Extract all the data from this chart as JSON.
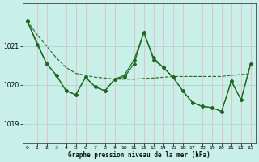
{
  "title": "Graphe pression niveau de la mer (hPa)",
  "bg_color": "#c8f0e8",
  "line_color": "#1a6b1a",
  "grid_color_v": "#f0b0b0",
  "grid_color_h": "#a8d8d0",
  "ylim": [
    1018.5,
    1022.1
  ],
  "yticks": [
    1019,
    1020,
    1021
  ],
  "xlim": [
    -0.5,
    23.5
  ],
  "xticks": [
    0,
    1,
    2,
    3,
    4,
    5,
    6,
    7,
    8,
    9,
    10,
    11,
    12,
    13,
    14,
    15,
    16,
    17,
    18,
    19,
    20,
    21,
    22,
    23
  ],
  "line_zigzag": [
    1021.65,
    1021.05,
    1020.55,
    1020.25,
    1019.85,
    1019.75,
    1020.2,
    1019.95,
    1019.85,
    1020.15,
    1020.25,
    1020.65,
    1021.35,
    1020.7,
    1020.45,
    1020.2,
    1019.85,
    1019.55,
    1019.45,
    1019.42,
    1019.32,
    1020.1,
    1019.62,
    1020.55
  ],
  "line_trend_x": [
    0,
    1,
    2,
    3,
    4,
    5,
    6,
    7,
    8,
    9,
    10,
    11,
    12,
    13,
    14,
    15,
    16,
    17,
    18,
    19,
    20,
    21,
    22,
    23
  ],
  "line_trend": [
    1021.65,
    1021.3,
    1021.0,
    1020.7,
    1020.45,
    1020.3,
    1020.25,
    1020.2,
    1020.18,
    1020.15,
    1020.15,
    1020.15,
    1020.17,
    1020.18,
    1020.2,
    1020.22,
    1020.22,
    1020.22,
    1020.22,
    1020.22,
    1020.22,
    1020.25,
    1020.27,
    1020.3
  ],
  "line_smooth_x": [
    0,
    2,
    3,
    4,
    5,
    6,
    7,
    8,
    9,
    10,
    11,
    12,
    13,
    14,
    15,
    16,
    17,
    18,
    19,
    20,
    21,
    22,
    23
  ],
  "line_smooth": [
    1021.65,
    1020.55,
    1020.25,
    1019.85,
    1019.75,
    1020.2,
    1019.95,
    1019.85,
    1020.15,
    1020.2,
    1020.55,
    1021.35,
    1020.65,
    1020.45,
    1020.2,
    1019.85,
    1019.55,
    1019.45,
    1019.42,
    1019.32,
    1020.1,
    1019.62,
    1020.55
  ]
}
